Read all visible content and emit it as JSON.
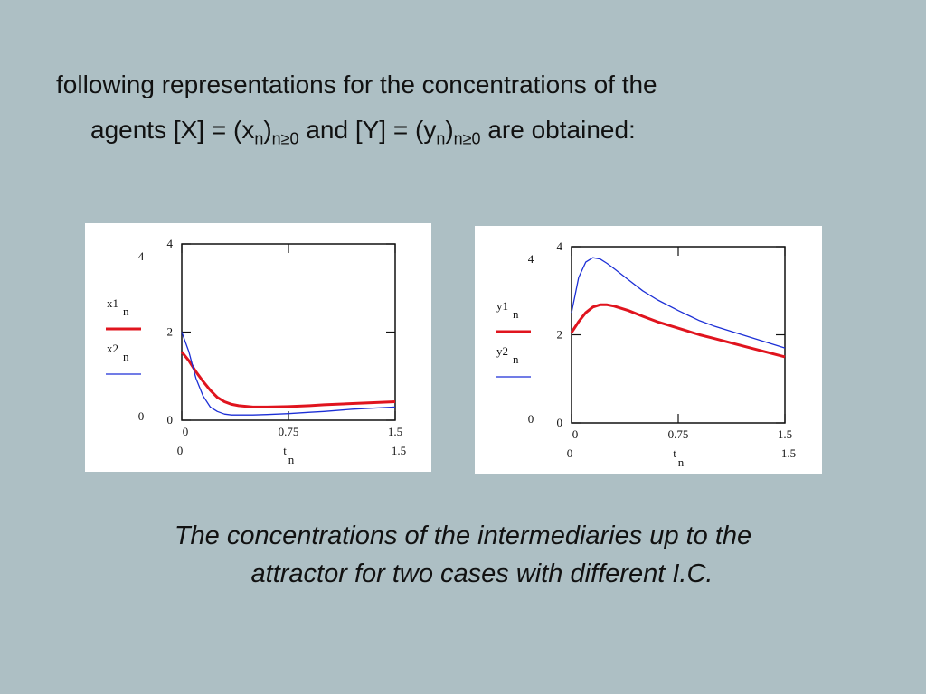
{
  "slide": {
    "text_line1": "following representations for the concentrations of the",
    "line2_a": "agents [X] = (x",
    "line2_sub1": "n",
    "line2_b": ")",
    "line2_sub2": "n≥0",
    "line2_c": " and [Y] = (y",
    "line2_sub3": "n",
    "line2_d": ")",
    "line2_sub4": "n≥0",
    "line2_e": " are obtained:",
    "caption_line1": "The concentrations of the intermediaries up to the",
    "caption_line2": "attractor for two cases with different I.C."
  },
  "colors": {
    "background": "#adbfc4",
    "series1": "#e0141e",
    "series2": "#1c2fd6"
  },
  "chart_data": [
    {
      "type": "line",
      "x": [
        0,
        0.05,
        0.1,
        0.15,
        0.2,
        0.25,
        0.3,
        0.35,
        0.4,
        0.5,
        0.6,
        0.75,
        0.9,
        1.0,
        1.2,
        1.5
      ],
      "series": [
        {
          "name": "x1",
          "values": [
            1.55,
            1.35,
            1.1,
            0.88,
            0.68,
            0.52,
            0.42,
            0.36,
            0.33,
            0.3,
            0.3,
            0.31,
            0.33,
            0.35,
            0.38,
            0.42
          ]
        },
        {
          "name": "x2",
          "values": [
            2.0,
            1.55,
            0.95,
            0.55,
            0.3,
            0.2,
            0.14,
            0.12,
            0.12,
            0.12,
            0.13,
            0.15,
            0.18,
            0.2,
            0.25,
            0.3
          ]
        }
      ],
      "xlim": [
        0,
        1.5
      ],
      "ylim": [
        0,
        4
      ],
      "xticks": [
        "0",
        "0.75",
        "1.5"
      ],
      "xticks_lower": [
        "0",
        "1.5"
      ],
      "yticks": [
        "0",
        "2",
        "4"
      ],
      "ylim_labels": [
        "4",
        "0"
      ],
      "xlabel": "t",
      "xlabel_sub": "n",
      "legend": [
        {
          "label": "x1",
          "sub": "n"
        },
        {
          "label": "x2",
          "sub": "n"
        }
      ]
    },
    {
      "type": "line",
      "x": [
        0,
        0.05,
        0.1,
        0.15,
        0.2,
        0.25,
        0.3,
        0.4,
        0.5,
        0.6,
        0.75,
        0.9,
        1.0,
        1.2,
        1.5
      ],
      "series": [
        {
          "name": "y1",
          "values": [
            2.05,
            2.3,
            2.5,
            2.63,
            2.68,
            2.68,
            2.65,
            2.55,
            2.42,
            2.3,
            2.15,
            2.0,
            1.92,
            1.75,
            1.5
          ]
        },
        {
          "name": "y2",
          "values": [
            2.5,
            3.3,
            3.65,
            3.75,
            3.72,
            3.62,
            3.5,
            3.25,
            3.0,
            2.8,
            2.55,
            2.32,
            2.2,
            2.0,
            1.7
          ]
        }
      ],
      "xlim": [
        0,
        1.5
      ],
      "ylim": [
        0,
        4
      ],
      "xticks": [
        "0",
        "0.75",
        "1.5"
      ],
      "xticks_lower": [
        "0",
        "1.5"
      ],
      "yticks": [
        "0",
        "2",
        "4"
      ],
      "ylim_labels": [
        "4",
        "0"
      ],
      "xlabel": "t",
      "xlabel_sub": "n",
      "legend": [
        {
          "label": "y1",
          "sub": "n"
        },
        {
          "label": "y2",
          "sub": "n"
        }
      ]
    }
  ]
}
